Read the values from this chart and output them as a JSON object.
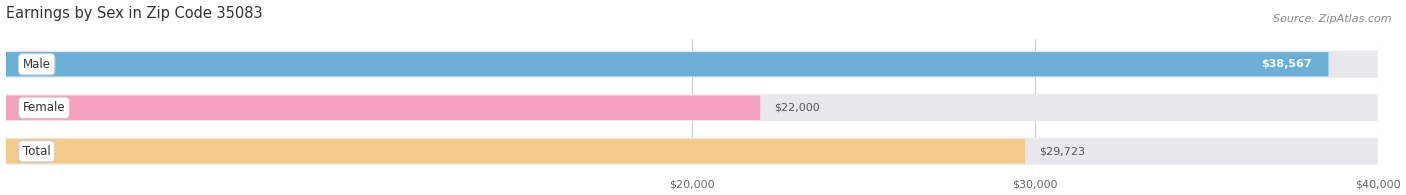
{
  "title": "Earnings by Sex in Zip Code 35083",
  "source": "Source: ZipAtlas.com",
  "categories": [
    "Male",
    "Female",
    "Total"
  ],
  "values": [
    38567,
    22000,
    29723
  ],
  "bar_colors": [
    "#6aafd6",
    "#f4a0be",
    "#f5c98a"
  ],
  "bar_track_color": "#e8e8ec",
  "value_labels": [
    "$38,567",
    "$22,000",
    "$29,723"
  ],
  "value_label_inside": [
    true,
    false,
    false
  ],
  "value_label_colors_inside": [
    "#ffffff",
    "#666666",
    "#666666"
  ],
  "xlim_min": 0,
  "xlim_max": 40000,
  "xaxis_min": 20000,
  "xaxis_max": 40000,
  "xticks": [
    20000,
    30000,
    40000
  ],
  "xtick_labels": [
    "$20,000",
    "$30,000",
    "$40,000"
  ],
  "bg_color": "#ffffff",
  "label_font_size": 8.5,
  "value_font_size": 8.0,
  "title_font_size": 10.5,
  "source_font_size": 8.0,
  "figsize": [
    14.06,
    1.95
  ],
  "dpi": 100
}
